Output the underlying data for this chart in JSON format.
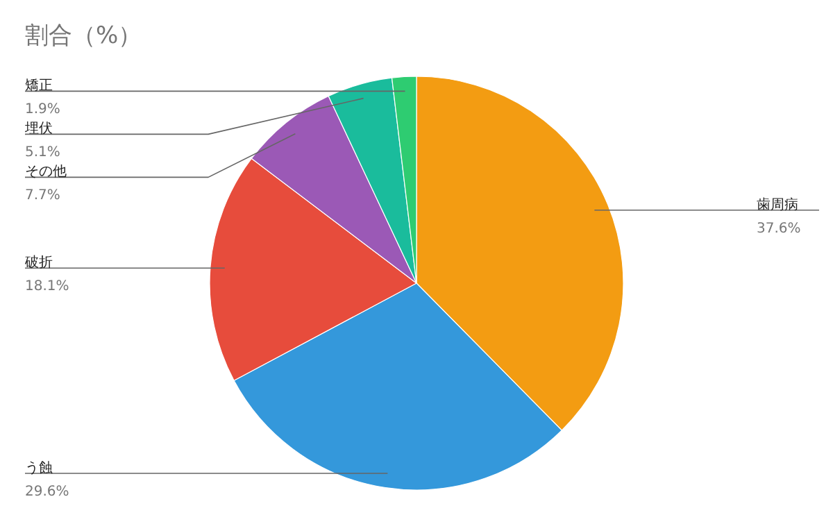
{
  "chart_data": {
    "type": "pie",
    "title": "割合（%）",
    "categories": [
      "歯周病",
      "う蝕",
      "破折",
      "その他",
      "埋伏",
      "矯正"
    ],
    "values": [
      37.6,
      29.6,
      18.1,
      7.7,
      5.1,
      1.9
    ],
    "colors": [
      "#f39c12",
      "#3498db",
      "#e74c3c",
      "#9b59b6",
      "#1abc9c",
      "#2ecc71"
    ],
    "value_labels": [
      "37.6%",
      "29.6%",
      "18.1%",
      "7.7%",
      "5.1%",
      "1.9%"
    ]
  }
}
